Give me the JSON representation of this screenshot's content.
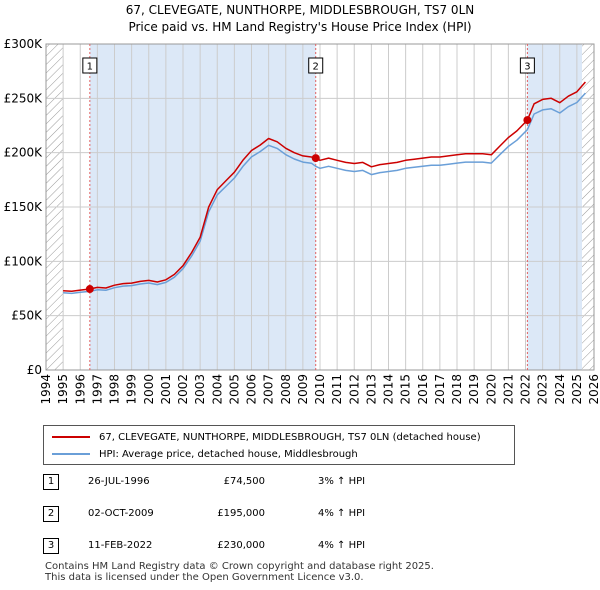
{
  "title_line1": "67, CLEVEGATE, NUNTHORPE, MIDDLESBROUGH, TS7 0LN",
  "title_line2": "Price paid vs. HM Land Registry's House Price Index (HPI)",
  "legend": {
    "property_label": "67, CLEVEGATE, NUNTHORPE, MIDDLESBROUGH, TS7 0LN (detached house)",
    "hpi_label": "HPI: Average price, detached house, Middlesbrough"
  },
  "colors": {
    "property": "#cc0000",
    "hpi": "#6a9fd8",
    "sale_marker": "#cc0000",
    "vline": "#e06060",
    "shade": "#dce8f7",
    "hatch": "#999999",
    "grid": "#cccccc"
  },
  "transactions": [
    {
      "num": "1",
      "date": "26-JUL-1996",
      "price": "£74,500",
      "hpi": "3% ↑ HPI"
    },
    {
      "num": "2",
      "date": "02-OCT-2009",
      "price": "£195,000",
      "hpi": "4% ↑ HPI"
    },
    {
      "num": "3",
      "date": "11-FEB-2022",
      "price": "£230,000",
      "hpi": "4% ↑ HPI"
    }
  ],
  "footer_line1": "Contains HM Land Registry data © Crown copyright and database right 2025.",
  "footer_line2": "This data is licensed under the Open Government Licence v3.0.",
  "chart_data": {
    "type": "line",
    "title": "67, CLEVEGATE, NUNTHORPE, MIDDLESBROUGH, TS7 0LN — Price paid vs. HM Land Registry's House Price Index (HPI)",
    "xlabel": "",
    "ylabel": "",
    "xlim": [
      1994,
      2026
    ],
    "ylim": [
      0,
      300000
    ],
    "y_ticks": [
      0,
      50000,
      100000,
      150000,
      200000,
      250000,
      300000
    ],
    "y_tick_labels": [
      "£0",
      "£50K",
      "£100K",
      "£150K",
      "£200K",
      "£250K",
      "£300K"
    ],
    "x_ticks": [
      "1994",
      "1995",
      "1996",
      "1997",
      "1998",
      "1999",
      "2000",
      "2001",
      "2002",
      "2003",
      "2004",
      "2005",
      "2006",
      "2007",
      "2008",
      "2009",
      "2010",
      "2011",
      "2012",
      "2013",
      "2014",
      "2015",
      "2016",
      "2017",
      "2018",
      "2019",
      "2020",
      "2021",
      "2022",
      "2023",
      "2024",
      "2025",
      "2026"
    ],
    "grid": true,
    "series": [
      {
        "name": "67, CLEVEGATE, NUNTHORPE, MIDDLESBROUGH, TS7 0LN (detached house)",
        "x": [
          1995.0,
          1995.5,
          1996.0,
          1996.56,
          1997.0,
          1997.5,
          1998.0,
          1998.5,
          1999.0,
          1999.5,
          2000.0,
          2000.5,
          2001.0,
          2001.5,
          2002.0,
          2002.5,
          2003.0,
          2003.5,
          2004.0,
          2004.5,
          2005.0,
          2005.5,
          2006.0,
          2006.5,
          2007.0,
          2007.5,
          2008.0,
          2008.5,
          2009.0,
          2009.5,
          2009.75,
          2010.0,
          2010.5,
          2011.0,
          2011.5,
          2012.0,
          2012.5,
          2013.0,
          2013.5,
          2014.0,
          2014.5,
          2015.0,
          2015.5,
          2016.0,
          2016.5,
          2017.0,
          2017.5,
          2018.0,
          2018.5,
          2019.0,
          2019.5,
          2020.0,
          2020.5,
          2021.0,
          2021.5,
          2022.11,
          2022.5,
          2023.0,
          2023.5,
          2024.0,
          2024.5,
          2025.0,
          2025.5
        ],
        "values": [
          73000,
          72500,
          73500,
          74500,
          76000,
          75500,
          78000,
          79500,
          80000,
          81500,
          82500,
          81000,
          83000,
          88000,
          96000,
          108000,
          122000,
          150000,
          166000,
          174000,
          182000,
          193000,
          202000,
          207000,
          213000,
          210000,
          204000,
          200000,
          197000,
          196000,
          195000,
          193000,
          195000,
          193000,
          191000,
          190000,
          191000,
          187000,
          189000,
          190000,
          191000,
          193000,
          194000,
          195000,
          196000,
          196000,
          197000,
          198000,
          199000,
          199000,
          199000,
          198000,
          206000,
          214000,
          220000,
          230000,
          245000,
          249000,
          250000,
          246000,
          252000,
          256000,
          265000
        ]
      },
      {
        "name": "HPI: Average price, detached house, Middlesbrough",
        "x": [
          1995.0,
          1995.5,
          1996.0,
          1996.56,
          1997.0,
          1997.5,
          1998.0,
          1998.5,
          1999.0,
          1999.5,
          2000.0,
          2000.5,
          2001.0,
          2001.5,
          2002.0,
          2002.5,
          2003.0,
          2003.5,
          2004.0,
          2004.5,
          2005.0,
          2005.5,
          2006.0,
          2006.5,
          2007.0,
          2007.5,
          2008.0,
          2008.5,
          2009.0,
          2009.5,
          2009.75,
          2010.0,
          2010.5,
          2011.0,
          2011.5,
          2012.0,
          2012.5,
          2013.0,
          2013.5,
          2014.0,
          2014.5,
          2015.0,
          2015.5,
          2016.0,
          2016.5,
          2017.0,
          2017.5,
          2018.0,
          2018.5,
          2019.0,
          2019.5,
          2020.0,
          2020.5,
          2021.0,
          2021.5,
          2022.11,
          2022.5,
          2023.0,
          2023.5,
          2024.0,
          2024.5,
          2025.0,
          2025.5
        ],
        "values": [
          71000,
          70500,
          71500,
          72300,
          73800,
          73300,
          75700,
          77200,
          77700,
          79100,
          80100,
          78600,
          80600,
          85400,
          93200,
          104800,
          118400,
          145600,
          161200,
          168900,
          176700,
          187400,
          196100,
          201000,
          206800,
          203900,
          198100,
          194200,
          191300,
          190300,
          187500,
          185600,
          187500,
          185600,
          183700,
          182700,
          183700,
          179800,
          181700,
          182700,
          183700,
          185600,
          186500,
          187500,
          188500,
          188500,
          189400,
          190400,
          191300,
          191300,
          191300,
          190400,
          198100,
          205800,
          211500,
          221200,
          235600,
          239400,
          240400,
          236500,
          242300,
          246200,
          254800
        ]
      }
    ],
    "sales": [
      {
        "label": "1",
        "x": 1996.56,
        "value": 74500
      },
      {
        "label": "2",
        "x": 2009.75,
        "value": 195000
      },
      {
        "label": "3",
        "x": 2022.11,
        "value": 230000
      }
    ],
    "shaded_ranges": [
      [
        1996.56,
        2009.75
      ],
      [
        2022.11,
        2025.3
      ]
    ],
    "hatched_ranges": [
      [
        1994,
        1995.0
      ],
      [
        2025.3,
        2026
      ]
    ]
  }
}
